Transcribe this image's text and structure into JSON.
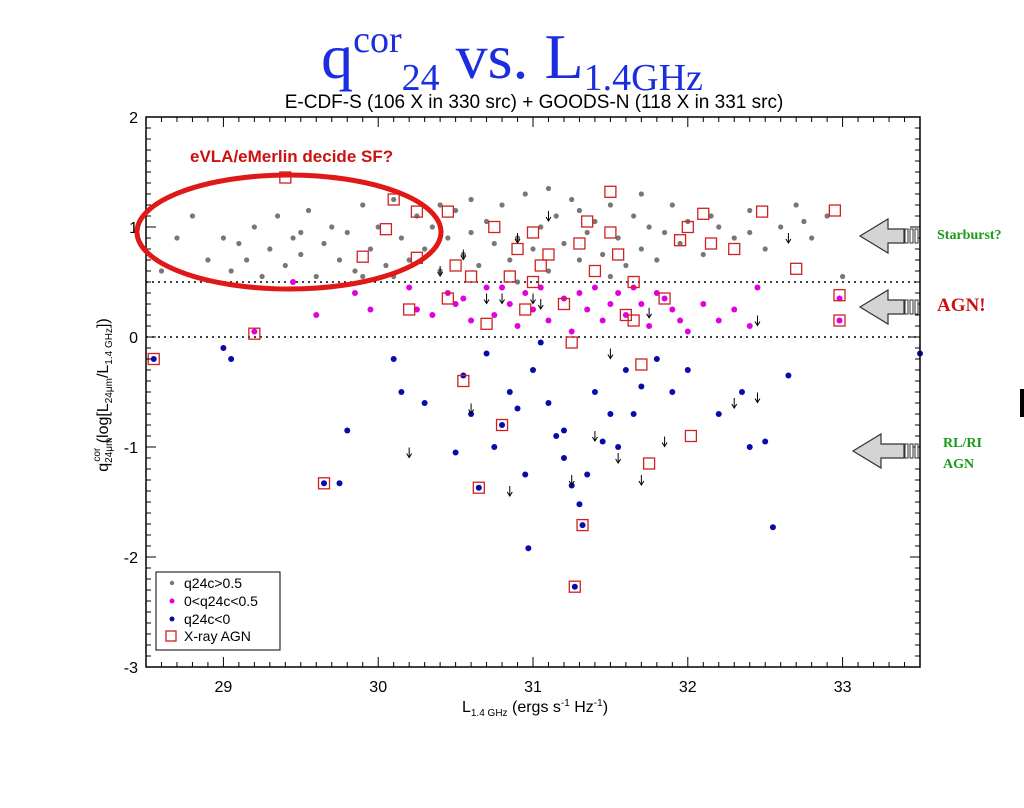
{
  "slide": {
    "title_q": "q",
    "title_cor": "cor",
    "title_24": "24",
    "title_vs": " vs. L",
    "title_freq": "1.4GHz"
  },
  "annotations": {
    "starburst": "Starburst?",
    "agn": "AGN!",
    "rl_ri_line1": "RL/RI",
    "rl_ri_line2": "AGN",
    "evla_note": "eVLA/eMerlin decide SF?"
  },
  "colors": {
    "title": "#1a2ee0",
    "grey": "#777777",
    "magenta": "#e000e0",
    "blue": "#0a0aa8",
    "xray_box": "#d02020",
    "ellipse": "#e01818",
    "annotation_green": "#1a9a1a",
    "annotation_red": "#cc1111"
  },
  "chart_data": {
    "type": "scatter",
    "title": "E-CDF-S (106 X in 330 src) + GOODS-N (118 X in 331 src)",
    "xlabel": "L1.4 GHz (ergs s-1 Hz-1)",
    "ylabel": "qcor24μm (log[L24μm/L1.4 GHz])",
    "xlim": [
      28.5,
      33.5
    ],
    "ylim": [
      -3,
      2
    ],
    "xticks": [
      29,
      30,
      31,
      32,
      33
    ],
    "yticks": [
      -3,
      -2,
      -1,
      0,
      1,
      2
    ],
    "reference_lines_y": [
      0.5,
      0.0
    ],
    "legend": {
      "position": "bottom-left",
      "entries": [
        {
          "label": "q24c>0.5",
          "marker": "grey-dot"
        },
        {
          "label": "0<q24c<0.5",
          "marker": "magenta-dot"
        },
        {
          "label": "q24c<0",
          "marker": "blue-dot"
        },
        {
          "label": "X-ray AGN",
          "marker": "red-square"
        }
      ]
    },
    "series": [
      {
        "name": "q24c>0.5",
        "color": "#777777",
        "points": [
          [
            28.6,
            0.6
          ],
          [
            28.7,
            0.9
          ],
          [
            28.8,
            1.1
          ],
          [
            29.0,
            0.9
          ],
          [
            29.05,
            0.6
          ],
          [
            29.1,
            0.85
          ],
          [
            29.15,
            0.7
          ],
          [
            29.2,
            1.0
          ],
          [
            29.25,
            0.55
          ],
          [
            29.3,
            0.8
          ],
          [
            29.35,
            1.1
          ],
          [
            29.4,
            0.65
          ],
          [
            29.45,
            0.9
          ],
          [
            29.5,
            0.75
          ],
          [
            29.55,
            1.15
          ],
          [
            29.6,
            0.55
          ],
          [
            29.65,
            0.85
          ],
          [
            29.7,
            1.0
          ],
          [
            29.75,
            0.7
          ],
          [
            29.8,
            0.95
          ],
          [
            29.85,
            0.6
          ],
          [
            29.9,
            1.2
          ],
          [
            29.95,
            0.8
          ],
          [
            30.0,
            1.0
          ],
          [
            30.05,
            0.65
          ],
          [
            30.1,
            1.25
          ],
          [
            30.15,
            0.9
          ],
          [
            30.2,
            0.7
          ],
          [
            30.25,
            1.1
          ],
          [
            30.3,
            0.8
          ],
          [
            30.35,
            1.0
          ],
          [
            30.4,
            0.6
          ],
          [
            30.45,
            0.9
          ],
          [
            30.5,
            1.15
          ],
          [
            30.55,
            0.75
          ],
          [
            30.6,
            0.95
          ],
          [
            30.65,
            0.65
          ],
          [
            30.7,
            1.05
          ],
          [
            30.75,
            0.85
          ],
          [
            30.8,
            1.2
          ],
          [
            30.85,
            0.7
          ],
          [
            30.9,
            0.9
          ],
          [
            30.95,
            1.3
          ],
          [
            31.0,
            0.8
          ],
          [
            31.05,
            1.0
          ],
          [
            31.1,
            0.6
          ],
          [
            31.15,
            1.1
          ],
          [
            31.2,
            0.85
          ],
          [
            31.25,
            1.25
          ],
          [
            31.3,
            0.7
          ],
          [
            31.35,
            0.95
          ],
          [
            31.4,
            1.05
          ],
          [
            31.45,
            0.75
          ],
          [
            31.5,
            1.2
          ],
          [
            31.55,
            0.9
          ],
          [
            31.6,
            0.65
          ],
          [
            31.65,
            1.1
          ],
          [
            31.7,
            0.8
          ],
          [
            31.75,
            1.0
          ],
          [
            31.8,
            0.7
          ],
          [
            31.85,
            0.95
          ],
          [
            31.9,
            1.2
          ],
          [
            31.95,
            0.85
          ],
          [
            32.0,
            1.05
          ],
          [
            32.1,
            0.75
          ],
          [
            32.2,
            1.0
          ],
          [
            32.3,
            0.9
          ],
          [
            32.4,
            1.15
          ],
          [
            32.5,
            0.8
          ],
          [
            32.6,
            1.0
          ],
          [
            32.7,
            1.2
          ],
          [
            32.8,
            0.9
          ],
          [
            32.9,
            1.1
          ],
          [
            33.0,
            0.55
          ],
          [
            30.1,
            0.55
          ],
          [
            30.6,
            1.25
          ],
          [
            31.1,
            1.35
          ],
          [
            31.5,
            0.55
          ],
          [
            30.9,
            0.5
          ],
          [
            31.7,
            1.3
          ],
          [
            32.15,
            1.1
          ],
          [
            29.5,
            0.95
          ],
          [
            29.9,
            0.55
          ],
          [
            30.4,
            1.2
          ],
          [
            31.3,
            1.15
          ],
          [
            32.4,
            0.95
          ],
          [
            28.9,
            0.7
          ],
          [
            32.75,
            1.05
          ]
        ]
      },
      {
        "name": "0<q24c<0.5",
        "color": "#e000e0",
        "points": [
          [
            29.2,
            0.05
          ],
          [
            29.45,
            0.5
          ],
          [
            29.6,
            0.2
          ],
          [
            29.85,
            0.4
          ],
          [
            29.95,
            0.25
          ],
          [
            30.2,
            0.45
          ],
          [
            30.25,
            0.25
          ],
          [
            30.35,
            0.2
          ],
          [
            30.45,
            0.4
          ],
          [
            30.55,
            0.35
          ],
          [
            30.6,
            0.15
          ],
          [
            30.7,
            0.45
          ],
          [
            30.75,
            0.2
          ],
          [
            30.85,
            0.3
          ],
          [
            30.9,
            0.1
          ],
          [
            30.95,
            0.4
          ],
          [
            31.0,
            0.25
          ],
          [
            31.05,
            0.45
          ],
          [
            31.1,
            0.15
          ],
          [
            31.2,
            0.35
          ],
          [
            31.25,
            0.05
          ],
          [
            31.3,
            0.4
          ],
          [
            31.35,
            0.25
          ],
          [
            31.4,
            0.45
          ],
          [
            31.45,
            0.15
          ],
          [
            31.5,
            0.3
          ],
          [
            31.55,
            0.4
          ],
          [
            31.6,
            0.2
          ],
          [
            31.65,
            0.45
          ],
          [
            31.7,
            0.3
          ],
          [
            31.75,
            0.1
          ],
          [
            31.8,
            0.4
          ],
          [
            31.9,
            0.25
          ],
          [
            31.95,
            0.15
          ],
          [
            32.0,
            0.05
          ],
          [
            32.1,
            0.3
          ],
          [
            32.2,
            0.15
          ],
          [
            32.3,
            0.25
          ],
          [
            32.4,
            0.1
          ],
          [
            32.45,
            0.45
          ],
          [
            32.98,
            0.35
          ],
          [
            32.98,
            0.15
          ],
          [
            30.5,
            0.3
          ],
          [
            31.85,
            0.35
          ],
          [
            30.8,
            0.45
          ]
        ]
      },
      {
        "name": "q24c<0",
        "color": "#0a0aa8",
        "points": [
          [
            28.55,
            -0.2
          ],
          [
            29.0,
            -0.1
          ],
          [
            29.05,
            -0.2
          ],
          [
            29.65,
            -1.33
          ],
          [
            29.75,
            -1.33
          ],
          [
            29.8,
            -0.85
          ],
          [
            30.1,
            -0.2
          ],
          [
            30.15,
            -0.5
          ],
          [
            30.3,
            -0.6
          ],
          [
            30.5,
            -1.05
          ],
          [
            30.55,
            -0.35
          ],
          [
            30.6,
            -0.7
          ],
          [
            30.65,
            -1.37
          ],
          [
            30.7,
            -0.15
          ],
          [
            30.75,
            -1.0
          ],
          [
            30.8,
            -0.8
          ],
          [
            30.85,
            -0.5
          ],
          [
            30.9,
            -0.65
          ],
          [
            30.95,
            -1.25
          ],
          [
            31.0,
            -0.3
          ],
          [
            31.05,
            -0.05
          ],
          [
            31.1,
            -0.6
          ],
          [
            31.15,
            -0.9
          ],
          [
            31.2,
            -1.1
          ],
          [
            31.25,
            -1.35
          ],
          [
            31.3,
            -1.52
          ],
          [
            31.35,
            -1.25
          ],
          [
            31.4,
            -0.5
          ],
          [
            31.45,
            -0.95
          ],
          [
            31.5,
            -0.7
          ],
          [
            31.55,
            -1.0
          ],
          [
            31.6,
            -0.3
          ],
          [
            31.65,
            -0.7
          ],
          [
            31.7,
            -0.45
          ],
          [
            31.8,
            -0.2
          ],
          [
            31.9,
            -0.5
          ],
          [
            32.0,
            -0.3
          ],
          [
            32.2,
            -0.7
          ],
          [
            32.35,
            -0.5
          ],
          [
            32.4,
            -1.0
          ],
          [
            32.55,
            -1.73
          ],
          [
            32.65,
            -0.35
          ],
          [
            33.5,
            -0.15
          ],
          [
            30.97,
            -1.92
          ],
          [
            31.27,
            -2.27
          ],
          [
            31.32,
            -1.71
          ],
          [
            32.5,
            -0.95
          ],
          [
            31.2,
            -0.85
          ]
        ]
      }
    ],
    "xray_agn": [
      [
        28.55,
        -0.2
      ],
      [
        29.2,
        0.03
      ],
      [
        29.4,
        1.45
      ],
      [
        29.65,
        -1.33
      ],
      [
        29.9,
        0.73
      ],
      [
        30.05,
        0.98
      ],
      [
        30.1,
        1.25
      ],
      [
        30.2,
        0.25
      ],
      [
        30.25,
        0.72
      ],
      [
        30.25,
        1.14
      ],
      [
        30.45,
        1.14
      ],
      [
        30.5,
        0.65
      ],
      [
        30.55,
        -0.4
      ],
      [
        30.6,
        0.55
      ],
      [
        30.65,
        -1.37
      ],
      [
        30.7,
        0.12
      ],
      [
        30.75,
        1.0
      ],
      [
        30.8,
        -0.8
      ],
      [
        30.85,
        0.55
      ],
      [
        30.9,
        0.8
      ],
      [
        30.95,
        0.25
      ],
      [
        31.0,
        0.95
      ],
      [
        31.05,
        0.65
      ],
      [
        31.1,
        0.75
      ],
      [
        31.2,
        0.3
      ],
      [
        31.25,
        -0.05
      ],
      [
        31.3,
        0.85
      ],
      [
        31.35,
        1.05
      ],
      [
        31.4,
        0.6
      ],
      [
        31.5,
        1.32
      ],
      [
        31.55,
        0.75
      ],
      [
        31.6,
        0.2
      ],
      [
        31.65,
        0.5
      ],
      [
        31.7,
        -0.25
      ],
      [
        31.75,
        -1.15
      ],
      [
        31.85,
        0.35
      ],
      [
        31.95,
        0.88
      ],
      [
        32.0,
        1.0
      ],
      [
        32.02,
        -0.9
      ],
      [
        32.1,
        1.12
      ],
      [
        32.15,
        0.85
      ],
      [
        32.3,
        0.8
      ],
      [
        32.48,
        1.14
      ],
      [
        32.7,
        0.62
      ],
      [
        32.95,
        1.15
      ],
      [
        32.98,
        0.38
      ],
      [
        32.98,
        0.15
      ],
      [
        31.27,
        -2.27
      ],
      [
        31.32,
        -1.71
      ],
      [
        31.5,
        0.95
      ],
      [
        30.45,
        0.35
      ],
      [
        31.0,
        0.5
      ],
      [
        31.65,
        0.15
      ]
    ],
    "upper_limits": [
      [
        30.4,
        0.6
      ],
      [
        30.55,
        0.75
      ],
      [
        30.6,
        -0.65
      ],
      [
        30.7,
        0.35
      ],
      [
        30.8,
        0.35
      ],
      [
        30.85,
        -1.4
      ],
      [
        30.9,
        0.9
      ],
      [
        31.0,
        0.35
      ],
      [
        31.1,
        1.1
      ],
      [
        31.25,
        -1.3
      ],
      [
        31.4,
        -0.9
      ],
      [
        31.5,
        -0.15
      ],
      [
        31.55,
        -1.1
      ],
      [
        31.7,
        -1.3
      ],
      [
        31.85,
        -0.95
      ],
      [
        32.3,
        -0.6
      ],
      [
        32.45,
        0.15
      ],
      [
        32.45,
        -0.55
      ],
      [
        32.65,
        0.9
      ],
      [
        30.2,
        -1.05
      ],
      [
        31.05,
        0.3
      ],
      [
        31.75,
        0.22
      ]
    ]
  }
}
